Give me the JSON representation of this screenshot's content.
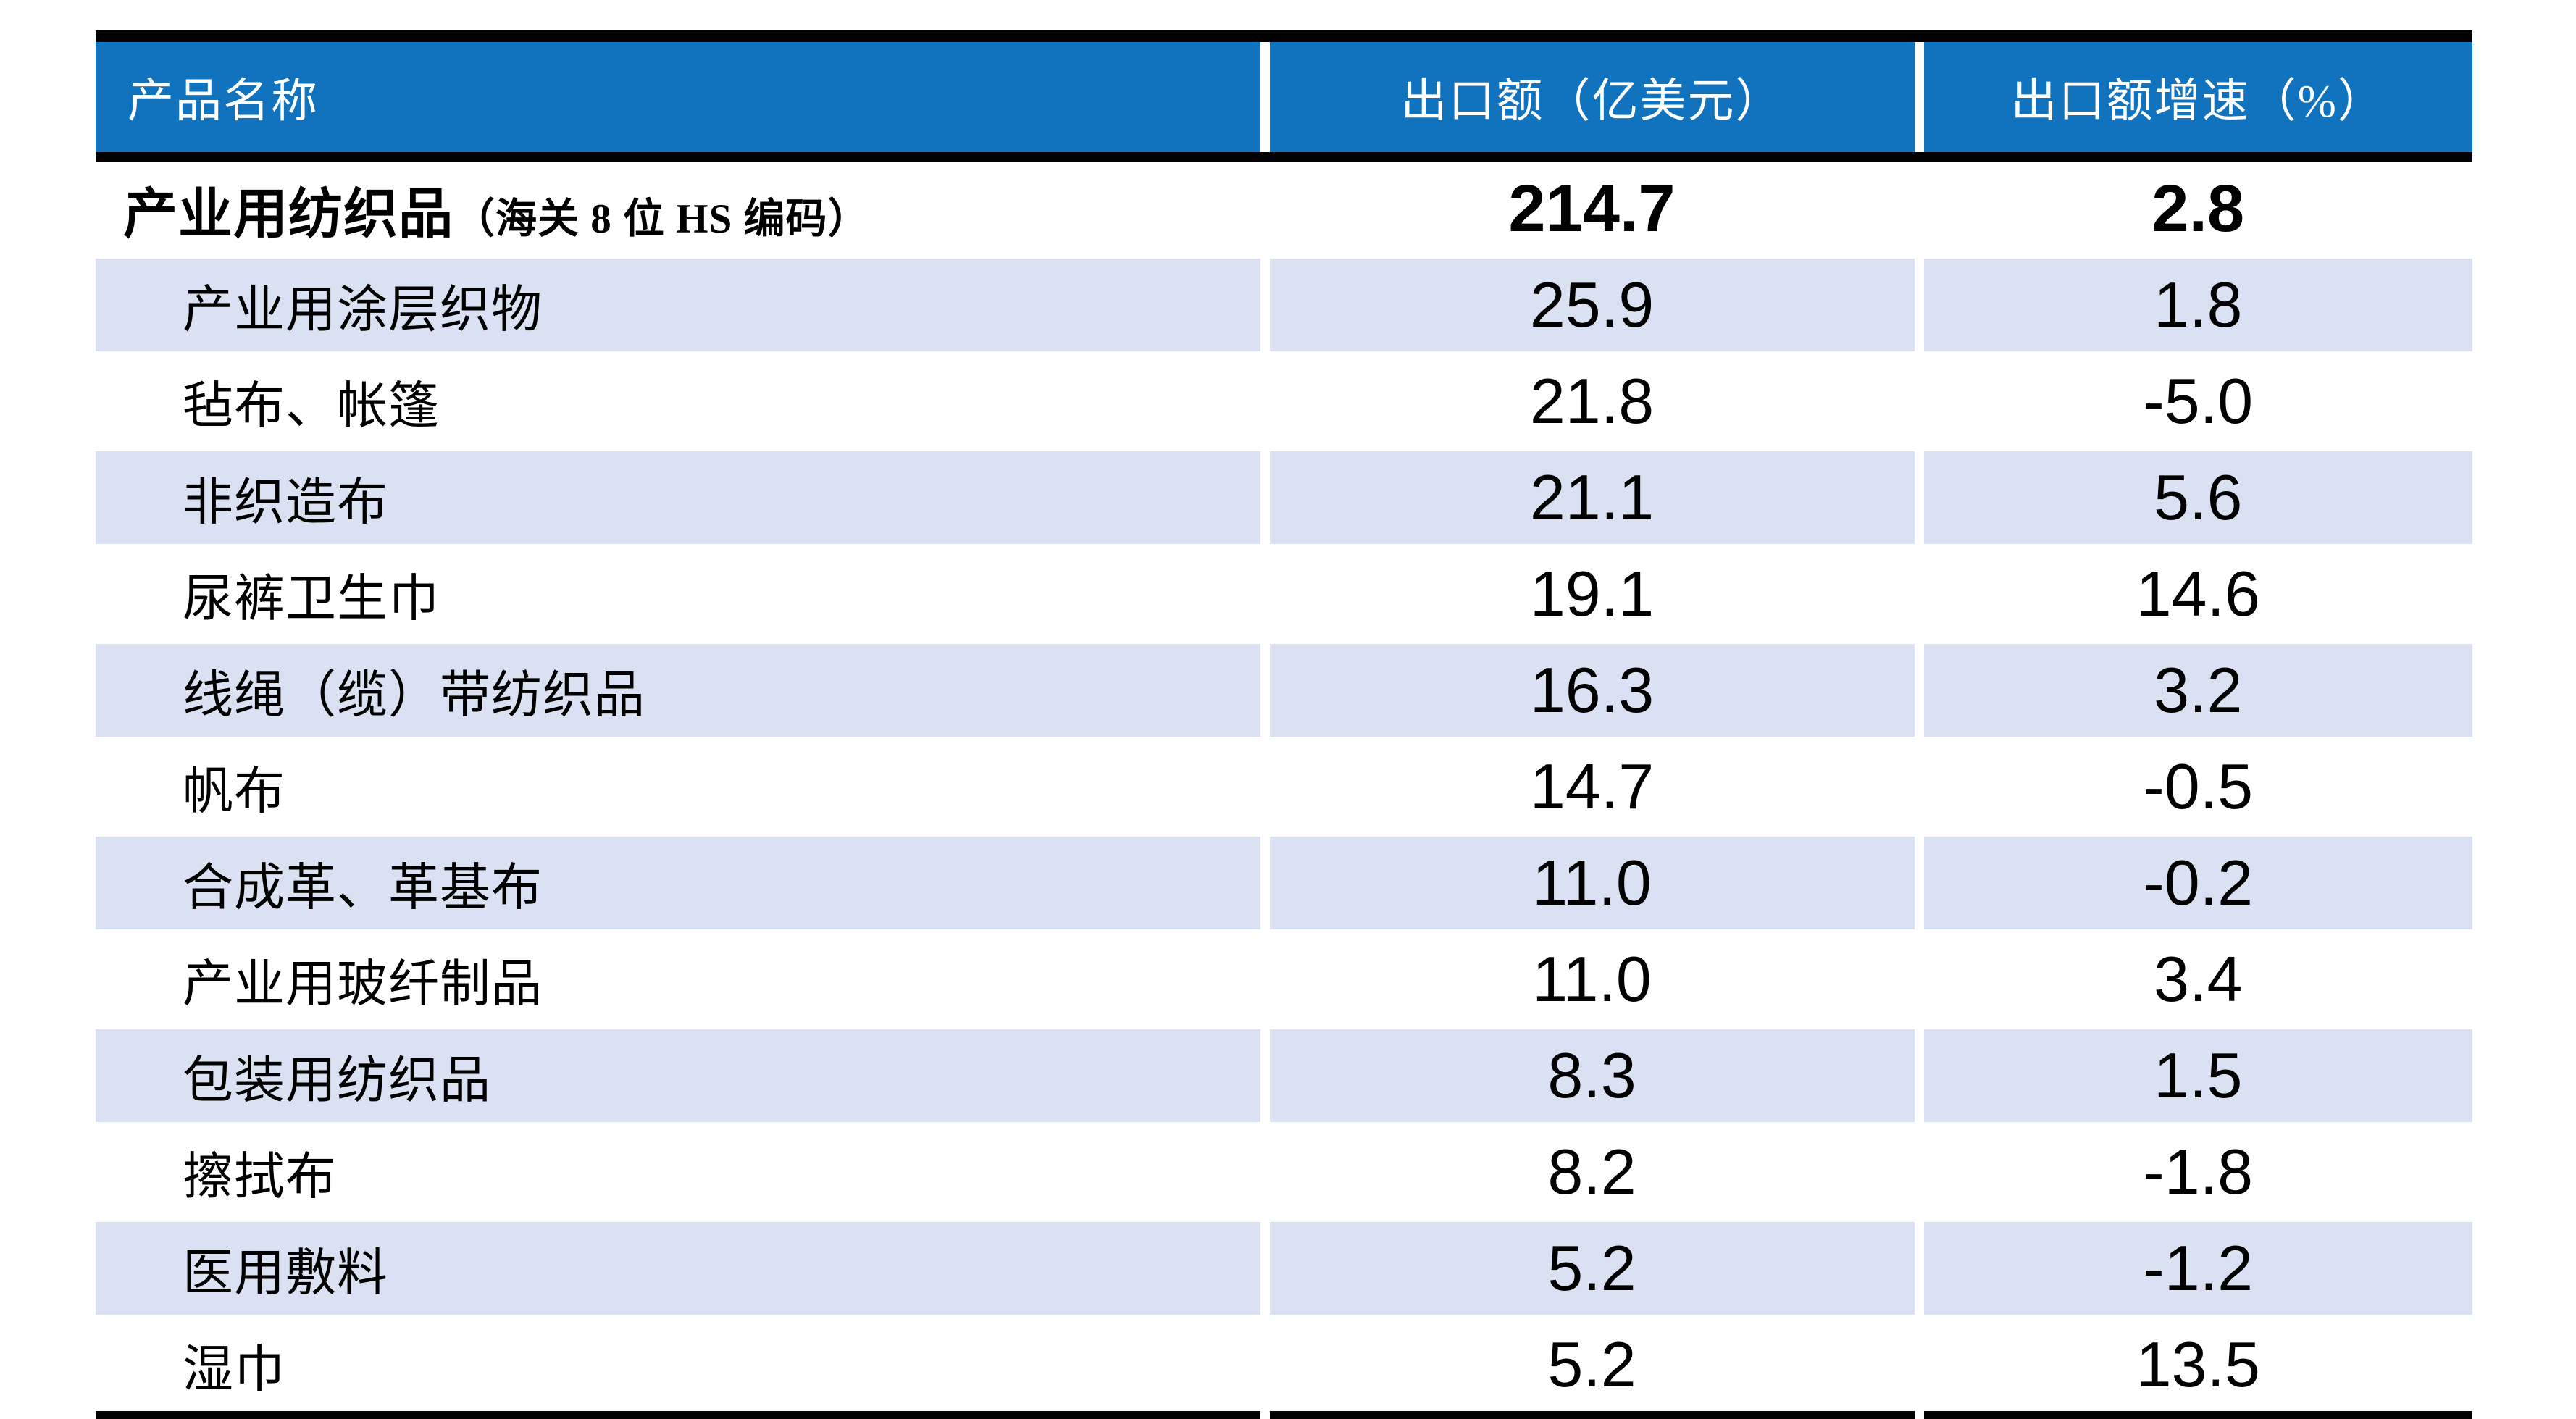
{
  "colors": {
    "header_bg": "#1173BE",
    "header_text": "#FFFFFF",
    "band_bg": "#D9E1F2",
    "row_bg": "#FFFFFF",
    "border": "#000000",
    "body_text": "#000000"
  },
  "chart_data": {
    "type": "table",
    "columns": [
      "产品名称",
      "出口额（亿美元）",
      "出口额增速（%）"
    ],
    "total_row": {
      "label_main": "产业用纺织品",
      "label_note": "（海关 8 位 HS 编码）",
      "export_value": "214.7",
      "growth_pct": "2.8"
    },
    "rows": [
      {
        "label": "产业用涂层织物",
        "export_value": "25.9",
        "growth_pct": "1.8"
      },
      {
        "label": "毡布、帐篷",
        "export_value": "21.8",
        "growth_pct": "-5.0"
      },
      {
        "label": "非织造布",
        "export_value": "21.1",
        "growth_pct": "5.6"
      },
      {
        "label": "尿裤卫生巾",
        "export_value": "19.1",
        "growth_pct": "14.6"
      },
      {
        "label": "线绳（缆）带纺织品",
        "export_value": "16.3",
        "growth_pct": "3.2"
      },
      {
        "label": "帆布",
        "export_value": "14.7",
        "growth_pct": "-0.5"
      },
      {
        "label": "合成革、革基布",
        "export_value": "11.0",
        "growth_pct": "-0.2"
      },
      {
        "label": "产业用玻纤制品",
        "export_value": "11.0",
        "growth_pct": "3.4"
      },
      {
        "label": "包装用纺织品",
        "export_value": "8.3",
        "growth_pct": "1.5"
      },
      {
        "label": "擦拭布",
        "export_value": "8.2",
        "growth_pct": "-1.8"
      },
      {
        "label": "医用敷料",
        "export_value": "5.2",
        "growth_pct": "-1.2"
      },
      {
        "label": "湿巾",
        "export_value": "5.2",
        "growth_pct": "13.5"
      }
    ]
  }
}
